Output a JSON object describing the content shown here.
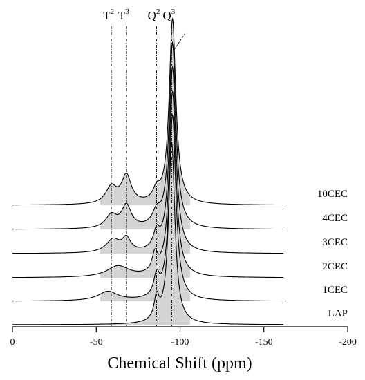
{
  "chart_data": {
    "type": "line",
    "title": "",
    "xlabel": "Chemical Shift (ppm)",
    "ylabel": "",
    "xlim": [
      0,
      -200
    ],
    "x_reversed": false,
    "x_ticks": [
      0,
      -50,
      -100,
      -150,
      -200
    ],
    "x_tick_labels": [
      "0",
      "-50",
      "-100",
      "-150",
      "-200"
    ],
    "grid": false,
    "fill_color": "#d4d4d4",
    "line_color": "#000000",
    "reference_lines": [
      {
        "label": "T",
        "sup": "2",
        "x": -59
      },
      {
        "label": "T",
        "sup": "3",
        "x": -68
      },
      {
        "label": "Q",
        "sup": "2",
        "x": -86
      },
      {
        "label": "Q",
        "sup": "3",
        "x": -95
      }
    ],
    "series": [
      {
        "name": "LAP",
        "peaks": [
          {
            "x": -86,
            "h": 0.12,
            "w": 1.8
          },
          {
            "x": -95,
            "h": 0.98,
            "w": 2.3
          }
        ]
      },
      {
        "name": "1CEC",
        "peaks": [
          {
            "x": -57,
            "h": 0.05,
            "w": 7
          },
          {
            "x": -86,
            "h": 0.11,
            "w": 2
          },
          {
            "x": -95.5,
            "h": 1.0,
            "w": 2.4
          }
        ]
      },
      {
        "name": "2CEC",
        "peaks": [
          {
            "x": -63,
            "h": 0.06,
            "w": 8
          },
          {
            "x": -85,
            "h": 0.1,
            "w": 2
          },
          {
            "x": -95.5,
            "h": 1.0,
            "w": 2.4
          }
        ]
      },
      {
        "name": "3CEC",
        "peaks": [
          {
            "x": -60,
            "h": 0.07,
            "w": 5
          },
          {
            "x": -68,
            "h": 0.07,
            "w": 3
          },
          {
            "x": -86,
            "h": 0.09,
            "w": 2.3
          },
          {
            "x": -95.5,
            "h": 1.0,
            "w": 2.4
          }
        ]
      },
      {
        "name": "4CEC",
        "peaks": [
          {
            "x": -59,
            "h": 0.07,
            "w": 4
          },
          {
            "x": -68,
            "h": 0.12,
            "w": 3.5
          },
          {
            "x": -86,
            "h": 0.07,
            "w": 3
          },
          {
            "x": -95.5,
            "h": 1.0,
            "w": 2.4
          }
        ]
      },
      {
        "name": "10CEC",
        "peaks": [
          {
            "x": -59,
            "h": 0.09,
            "w": 4
          },
          {
            "x": -68,
            "h": 0.15,
            "w": 3.5
          },
          {
            "x": -86,
            "h": 0.06,
            "w": 2.5
          },
          {
            "x": -95.5,
            "h": 1.0,
            "w": 2.4
          }
        ]
      }
    ]
  }
}
